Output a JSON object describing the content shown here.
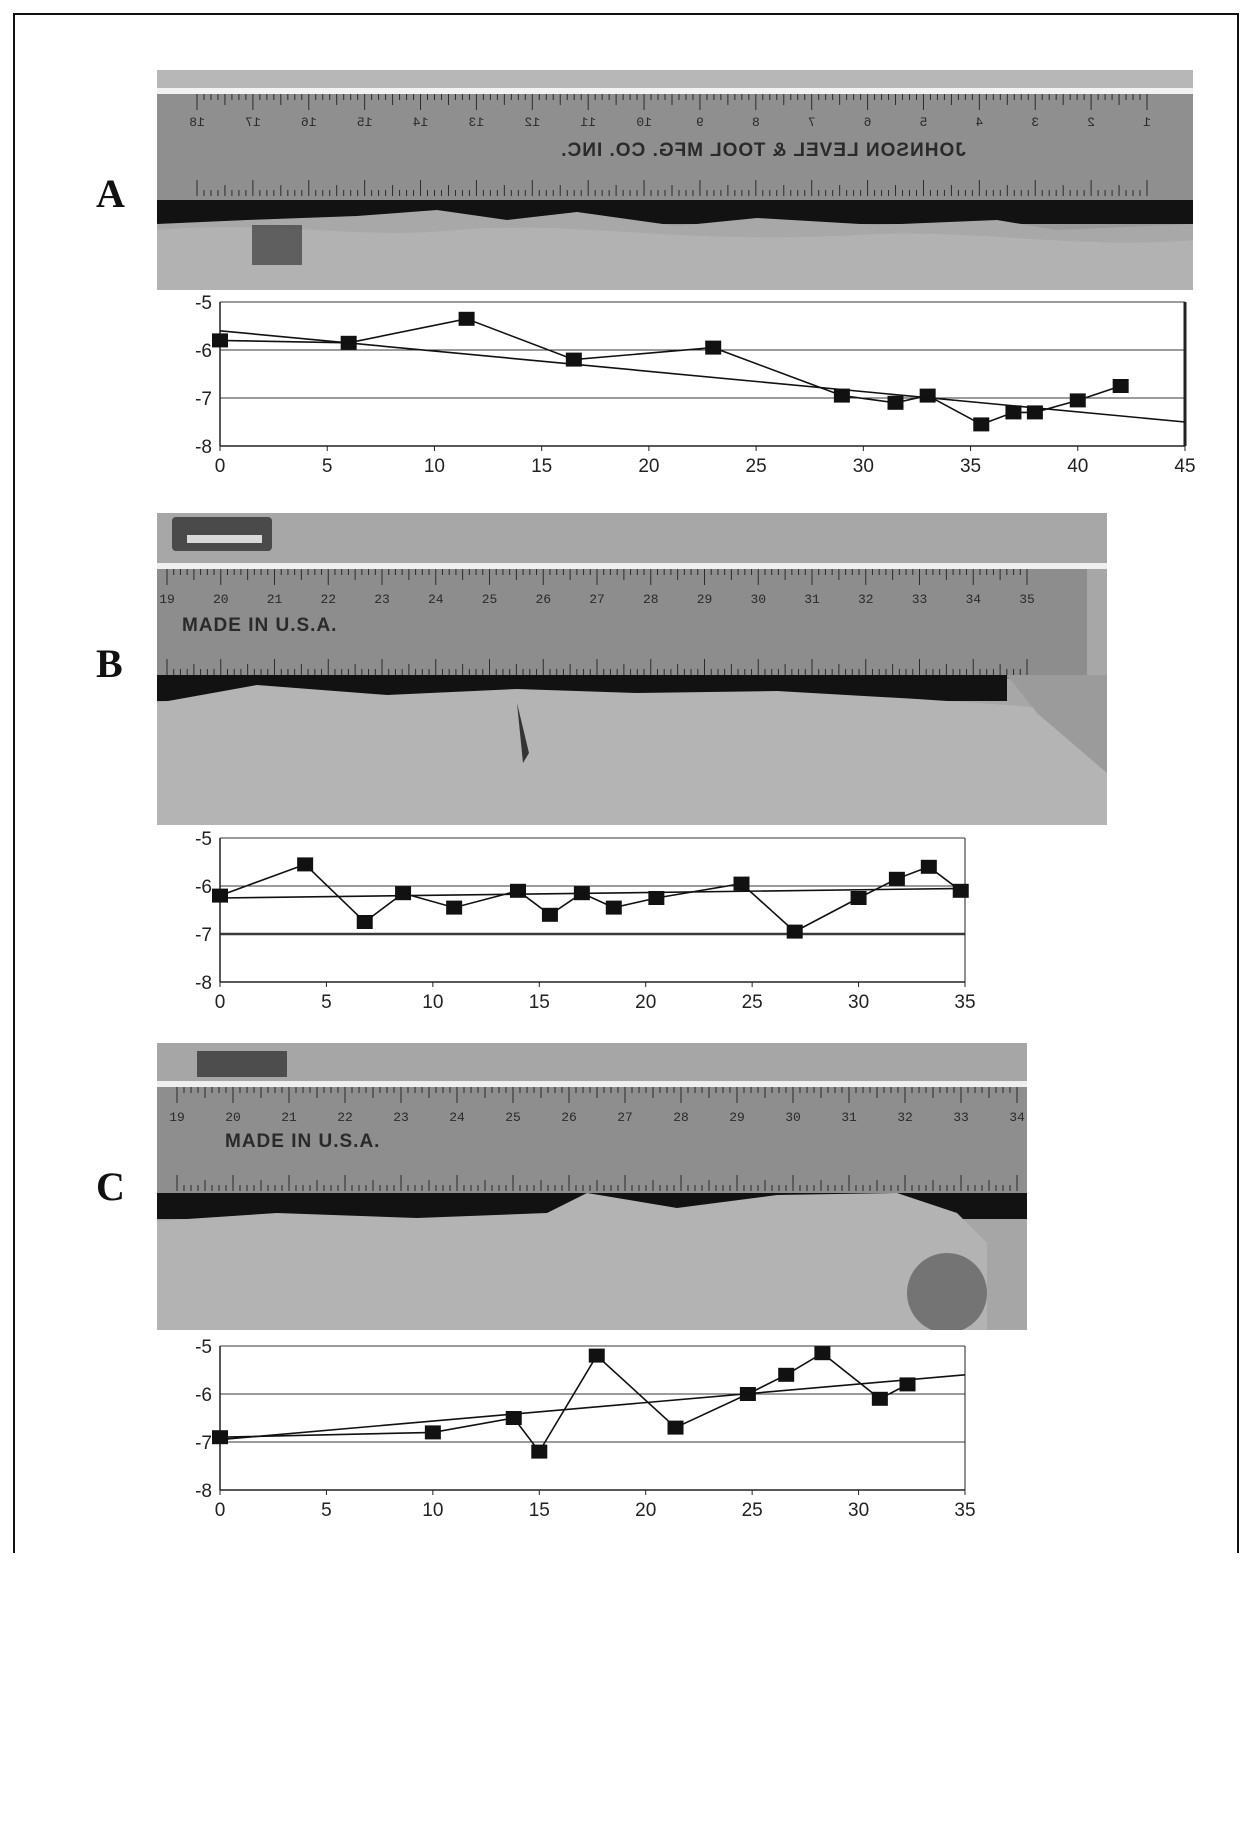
{
  "panels": [
    {
      "label": "A",
      "ruler": {
        "numbers": [
          "18",
          "17",
          "16",
          "15",
          "14",
          "13",
          "12",
          "11",
          "10",
          "9",
          "8",
          "7",
          "6",
          "5",
          "4",
          "3",
          "2",
          "1"
        ],
        "text": "JOHNSON LEVEL & TOOL MFG. CO. INC.",
        "mirrored": true
      }
    },
    {
      "label": "B",
      "ruler": {
        "numbers": [
          "19",
          "20",
          "21",
          "22",
          "23",
          "24",
          "25",
          "26",
          "27",
          "28",
          "29",
          "30",
          "31",
          "32",
          "33",
          "34",
          "35"
        ],
        "text": "MADE IN U.S.A.",
        "mirrored": false
      }
    },
    {
      "label": "C",
      "ruler": {
        "numbers": [
          "19",
          "20",
          "21",
          "22",
          "23",
          "24",
          "25",
          "26",
          "27",
          "28",
          "29",
          "30",
          "31",
          "32",
          "33",
          "34"
        ],
        "text": "MADE IN U.S.A.",
        "mirrored": false
      }
    }
  ],
  "chart_data": [
    {
      "type": "line",
      "panel": "A",
      "xlim": [
        0,
        45
      ],
      "ylim": [
        -8,
        -5
      ],
      "xticks": [
        "0",
        "5",
        "10",
        "15",
        "20",
        "25",
        "30",
        "35",
        "40",
        "45"
      ],
      "yticks": [
        "-5",
        "-6",
        "-7",
        "-8"
      ],
      "ytick_values": [
        -5,
        -6,
        -7,
        -8
      ],
      "xtick_values": [
        0,
        5,
        10,
        15,
        20,
        25,
        30,
        35,
        40,
        45
      ],
      "series": [
        {
          "x": [
            0,
            6,
            11.5,
            16.5,
            23,
            29,
            31.5,
            33,
            35.5,
            37,
            38,
            40,
            42
          ],
          "y": [
            -5.8,
            -5.85,
            -5.35,
            -6.2,
            -5.95,
            -6.95,
            -7.1,
            -6.95,
            -7.55,
            -7.3,
            -7.3,
            -7.05,
            -6.75
          ],
          "markers": true
        },
        {
          "x": [
            0,
            45
          ],
          "y": [
            -5.6,
            -7.5
          ],
          "markers": false
        }
      ]
    },
    {
      "type": "line",
      "panel": "B",
      "xlim": [
        0,
        35
      ],
      "ylim": [
        -8,
        -5
      ],
      "xticks": [
        "0",
        "5",
        "10",
        "15",
        "20",
        "25",
        "30",
        "35"
      ],
      "yticks": [
        "-5",
        "-6",
        "-7",
        "-8"
      ],
      "ytick_values": [
        -5,
        -6,
        -7,
        -8
      ],
      "xtick_values": [
        0,
        5,
        10,
        15,
        20,
        25,
        30,
        35
      ],
      "series": [
        {
          "x": [
            0,
            4,
            6.8,
            8.6,
            11,
            14,
            15.5,
            17,
            18.5,
            20.5,
            24.5,
            27,
            30,
            31.8,
            33.3,
            34.8
          ],
          "y": [
            -6.2,
            -5.55,
            -6.75,
            -6.15,
            -6.45,
            -6.1,
            -6.6,
            -6.15,
            -6.45,
            -6.25,
            -5.95,
            -6.95,
            -6.25,
            -5.85,
            -5.6,
            -6.1
          ],
          "markers": true
        },
        {
          "x": [
            0,
            35
          ],
          "y": [
            -6.25,
            -6.05
          ],
          "markers": false
        }
      ]
    },
    {
      "type": "line",
      "panel": "C",
      "xlim": [
        0,
        35
      ],
      "ylim": [
        -8,
        -5
      ],
      "xticks": [
        "0",
        "5",
        "10",
        "15",
        "20",
        "25",
        "30",
        "35"
      ],
      "yticks": [
        "-5",
        "-6",
        "-7",
        "-8"
      ],
      "ytick_values": [
        -5,
        -6,
        -7,
        -8
      ],
      "xtick_values": [
        0,
        5,
        10,
        15,
        20,
        25,
        30,
        35
      ],
      "series": [
        {
          "x": [
            0,
            10,
            13.8,
            15,
            17.7,
            21.4,
            24.8,
            26.6,
            28.3,
            31,
            32.3
          ],
          "y": [
            -6.9,
            -6.8,
            -6.5,
            -7.2,
            -5.2,
            -6.7,
            -6.0,
            -5.6,
            -5.15,
            -6.1,
            -5.8
          ],
          "markers": true
        },
        {
          "x": [
            0,
            35
          ],
          "y": [
            -6.95,
            -5.6
          ],
          "markers": false
        }
      ]
    }
  ]
}
